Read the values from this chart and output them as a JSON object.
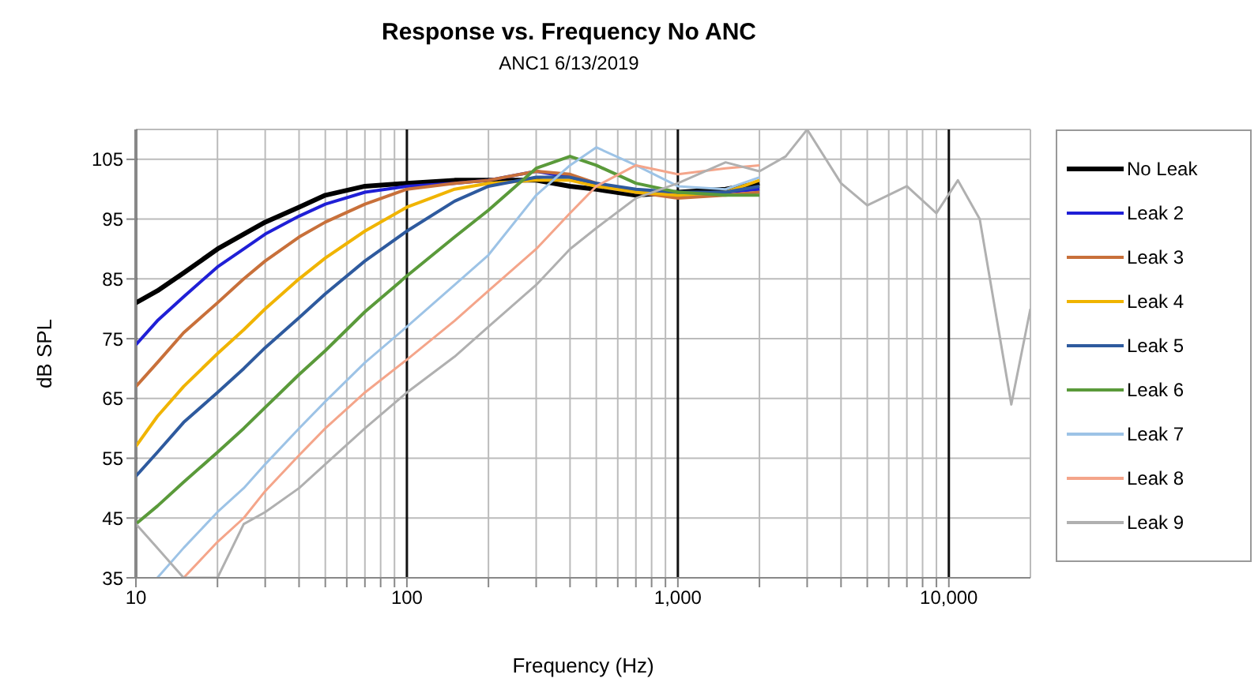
{
  "chart_data": {
    "type": "line",
    "title": "Response vs. Frequency No ANC",
    "subtitle": "ANC1 6/13/2019",
    "xlabel": "Frequency (Hz)",
    "ylabel": "dB SPL",
    "log": "x",
    "grid": true,
    "legend": "right",
    "marker": "none",
    "line_style": "solid",
    "x": [
      10,
      12,
      15,
      20,
      25,
      30,
      40,
      50,
      70,
      100,
      150,
      200,
      300,
      400,
      500,
      700,
      1000,
      1500,
      2000,
      2500,
      3000,
      4000,
      5000,
      7000,
      9000,
      10800,
      13000,
      17000,
      20000
    ],
    "xlim": [
      10,
      20000
    ],
    "ylim": [
      35,
      110
    ],
    "xticks": [
      {
        "value": 10,
        "label": "10"
      },
      {
        "value": 20,
        "label": null
      },
      {
        "value": 30,
        "label": null
      },
      {
        "value": 40,
        "label": null
      },
      {
        "value": 50,
        "label": null
      },
      {
        "value": 60,
        "label": null
      },
      {
        "value": 70,
        "label": null
      },
      {
        "value": 80,
        "label": null
      },
      {
        "value": 90,
        "label": null
      },
      {
        "value": 100,
        "label": "100"
      },
      {
        "value": 200,
        "label": null
      },
      {
        "value": 300,
        "label": null
      },
      {
        "value": 400,
        "label": null
      },
      {
        "value": 500,
        "label": null
      },
      {
        "value": 600,
        "label": null
      },
      {
        "value": 700,
        "label": null
      },
      {
        "value": 800,
        "label": null
      },
      {
        "value": 900,
        "label": null
      },
      {
        "value": 1000,
        "label": "1,000"
      },
      {
        "value": 2000,
        "label": null
      },
      {
        "value": 3000,
        "label": null
      },
      {
        "value": 4000,
        "label": null
      },
      {
        "value": 5000,
        "label": null
      },
      {
        "value": 6000,
        "label": null
      },
      {
        "value": 7000,
        "label": null
      },
      {
        "value": 8000,
        "label": null
      },
      {
        "value": 9000,
        "label": null
      },
      {
        "value": 10000,
        "label": "10,000"
      }
    ],
    "yticks": [
      35,
      45,
      55,
      65,
      75,
      85,
      95,
      105
    ],
    "series": [
      {
        "name": "No Leak",
        "color": "#000000",
        "values": [
          81,
          83,
          86,
          90,
          92.5,
          94.5,
          97,
          99,
          100.5,
          101,
          101.5,
          101.5,
          101.5,
          100.5,
          100,
          99,
          99.5,
          100,
          101,
          null,
          null,
          null,
          null,
          null,
          null,
          null,
          null,
          null,
          null
        ]
      },
      {
        "name": "Leak 2",
        "color": "#1f1fd6",
        "values": [
          74,
          78,
          82,
          87,
          90,
          92.5,
          95.5,
          97.5,
          99.5,
          100.5,
          101,
          101.5,
          103,
          102,
          100.5,
          99.5,
          99,
          99.5,
          100,
          null,
          null,
          null,
          null,
          null,
          null,
          null,
          null,
          null,
          null
        ]
      },
      {
        "name": "Leak 3",
        "color": "#c8703a",
        "values": [
          67,
          71,
          76,
          81,
          85,
          88,
          92,
          94.5,
          97.5,
          100,
          101,
          101.5,
          103,
          102.5,
          101,
          99.5,
          98.5,
          99,
          99.5,
          null,
          null,
          null,
          null,
          null,
          null,
          null,
          null,
          null,
          null
        ]
      },
      {
        "name": "Leak 4",
        "color": "#f0b400",
        "values": [
          57,
          62,
          67,
          72.5,
          76.5,
          80,
          85,
          88.5,
          93,
          97,
          100,
          101,
          101.5,
          101.5,
          100.5,
          99.5,
          99,
          99.5,
          101.5,
          null,
          null,
          null,
          null,
          null,
          null,
          null,
          null,
          null,
          null
        ]
      },
      {
        "name": "Leak 5",
        "color": "#2e5a9e",
        "values": [
          52,
          56,
          61,
          66,
          70,
          73.5,
          78.5,
          82.5,
          88,
          93,
          98,
          100.5,
          102,
          102,
          101,
          100,
          99.5,
          99.5,
          100.5,
          null,
          null,
          null,
          null,
          null,
          null,
          null,
          null,
          null,
          null
        ]
      },
      {
        "name": "Leak 6",
        "color": "#5a9a3a",
        "values": [
          44,
          47,
          51,
          56,
          60,
          63.5,
          69,
          73,
          79.5,
          85.5,
          92,
          96.5,
          103.5,
          105.5,
          104,
          101,
          99.5,
          99,
          99,
          null,
          null,
          null,
          null,
          null,
          null,
          null,
          null,
          null,
          null
        ]
      },
      {
        "name": "Leak 7",
        "color": "#9dc3e6",
        "values": [
          null,
          35,
          40,
          46,
          50,
          54,
          60,
          64.5,
          71,
          77,
          84,
          89,
          99,
          104,
          107,
          104,
          100.5,
          100,
          102,
          null,
          null,
          null,
          null,
          null,
          null,
          null,
          null,
          null,
          null
        ]
      },
      {
        "name": "Leak 8",
        "color": "#f4a58a",
        "values": [
          null,
          null,
          35,
          41,
          45,
          49.5,
          55.5,
          60,
          66,
          71.5,
          78,
          83,
          90,
          96,
          100.5,
          104,
          102.5,
          103.5,
          104,
          null,
          null,
          null,
          null,
          null,
          null,
          null,
          null,
          null,
          null
        ]
      },
      {
        "name": "Leak 9",
        "color": "#b0b0b0",
        "values": [
          44,
          40,
          35,
          35,
          44,
          46,
          50,
          54,
          60,
          66,
          72,
          77,
          84,
          90,
          93.5,
          98.5,
          101,
          104.5,
          103,
          105.5,
          110,
          101,
          97.3,
          100.5,
          96,
          101.5,
          95,
          64,
          80
        ]
      }
    ]
  }
}
